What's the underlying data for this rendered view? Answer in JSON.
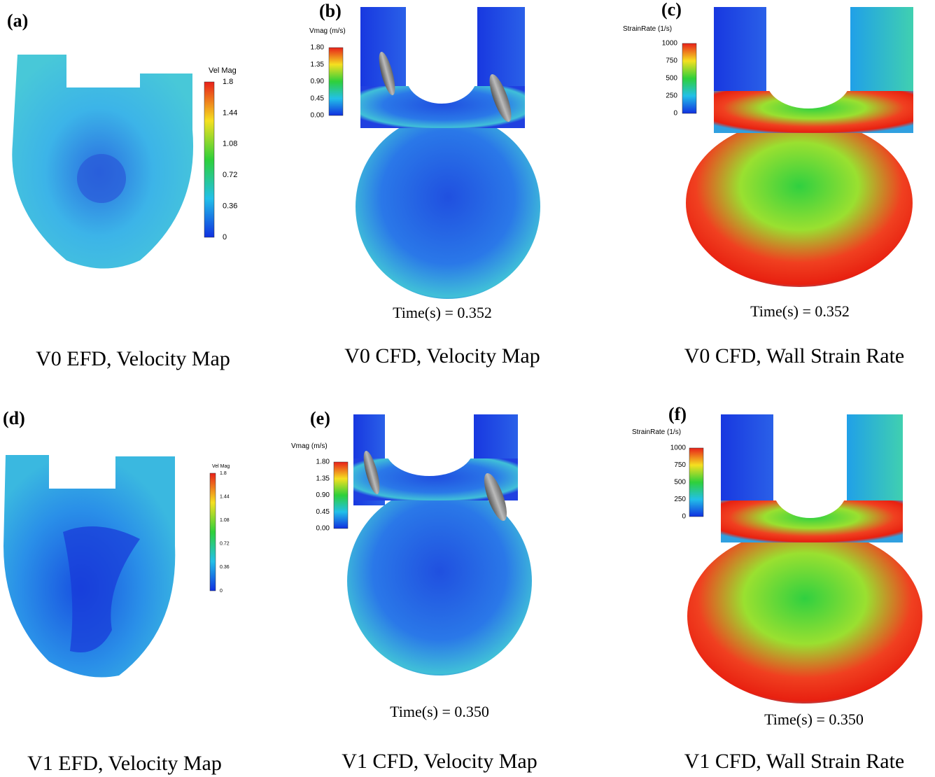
{
  "panels": [
    {
      "label": "(a)",
      "caption": "V0 EFD, Velocity  Map",
      "colorbar": {
        "title": "Vel Mag",
        "ticks": [
          "1.8",
          "1.44",
          "1.08",
          "0.72",
          "0.36",
          "0"
        ]
      }
    },
    {
      "label": "(b)",
      "caption": "V0 CFD, Velocity Map",
      "time": "Time(s) = 0.352",
      "colorbar": {
        "title": "Vmag (m/s)",
        "ticks": [
          "1.80",
          "1.35",
          "0.90",
          "0.45",
          "0.00"
        ]
      }
    },
    {
      "label": "(c)",
      "caption": "V0 CFD, Wall Strain Rate",
      "time": "Time(s) = 0.352",
      "colorbar": {
        "title": "StrainRate (1/s)",
        "ticks": [
          "1000",
          "750",
          "500",
          "250",
          "0"
        ]
      }
    },
    {
      "label": "(d)",
      "caption": "V1 EFD, Velocity Map",
      "colorbar": {
        "title": "Vel Mag",
        "ticks": [
          "1.8",
          "1.44",
          "1.08",
          "0.72",
          "0.36",
          "0"
        ]
      }
    },
    {
      "label": "(e)",
      "caption": "V1 CFD, Velocity Map",
      "time": "Time(s) = 0.350",
      "colorbar": {
        "title": "Vmag (m/s)",
        "ticks": [
          "1.80",
          "1.35",
          "0.90",
          "0.45",
          "0.00"
        ]
      }
    },
    {
      "label": "(f)",
      "caption": "V1 CFD, Wall Strain Rate",
      "time": "Time(s) = 0.350",
      "colorbar": {
        "title": "StrainRate (1/s)",
        "ticks": [
          "1000",
          "750",
          "500",
          "250",
          "0"
        ]
      }
    }
  ]
}
